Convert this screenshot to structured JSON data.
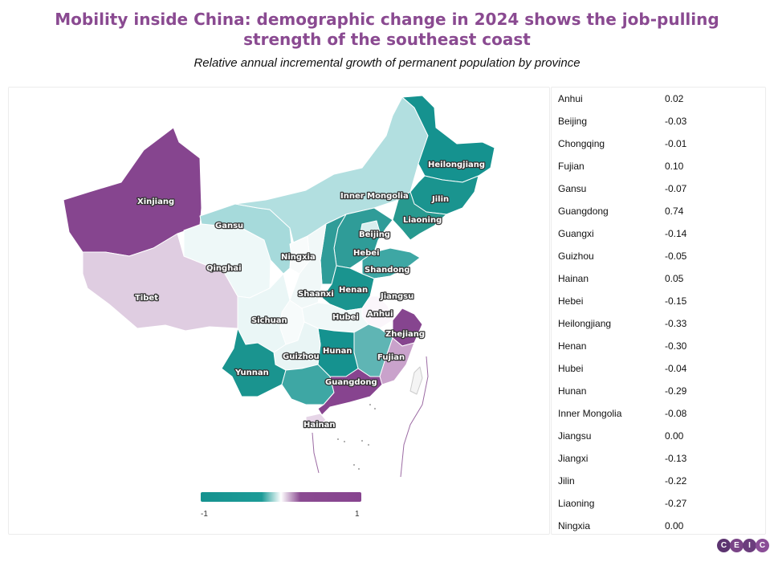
{
  "title": "Mobility inside China: demographic change in 2024 shows the job-pulling strength of the southeast coast",
  "subtitle": "Relative annual incremental growth of permanent population by province",
  "legend": {
    "min_label": "-1",
    "max_label": "1",
    "low_color": "#15928f",
    "mid_color": "#ffffff",
    "high_color": "#87448f"
  },
  "map_labels": {
    "xinjiang": "Xinjiang",
    "tibet": "Tibet",
    "qinghai": "Qinghai",
    "gansu": "Gansu",
    "inner_mongolia": "Inner Mongolia",
    "heilongjiang": "Heilongjiang",
    "jilin": "Jilin",
    "liaoning": "Liaoning",
    "beijing": "Beijing",
    "hebei": "Hebei",
    "shandong": "Shandong",
    "ningxia": "Ningxia",
    "shaanxi": "Shaanxi",
    "henan": "Henan",
    "jiangsu": "Jiangsu",
    "anhui": "Anhui",
    "hubei": "Hubei",
    "sichuan": "Sichuan",
    "zhejiang": "Zhejiang",
    "guizhou": "Guizhou",
    "hunan": "Hunan",
    "fujian": "Fujian",
    "yunnan": "Yunnan",
    "guangdong": "Guangdong",
    "hainan": "Hainan"
  },
  "table": {
    "rows": [
      {
        "province": "Anhui",
        "value": "0.02"
      },
      {
        "province": "Beijing",
        "value": "-0.03"
      },
      {
        "province": "Chongqing",
        "value": "-0.01"
      },
      {
        "province": "Fujian",
        "value": "0.10"
      },
      {
        "province": "Gansu",
        "value": "-0.07"
      },
      {
        "province": "Guangdong",
        "value": "0.74"
      },
      {
        "province": "Guangxi",
        "value": "-0.14"
      },
      {
        "province": "Guizhou",
        "value": "-0.05"
      },
      {
        "province": "Hainan",
        "value": "0.05"
      },
      {
        "province": "Hebei",
        "value": "-0.15"
      },
      {
        "province": "Heilongjiang",
        "value": "-0.33"
      },
      {
        "province": "Henan",
        "value": "-0.30"
      },
      {
        "province": "Hubei",
        "value": "-0.04"
      },
      {
        "province": "Hunan",
        "value": "-0.29"
      },
      {
        "province": "Inner Mongolia",
        "value": "-0.08"
      },
      {
        "province": "Jiangsu",
        "value": "0.00"
      },
      {
        "province": "Jiangxi",
        "value": "-0.13"
      },
      {
        "province": "Jilin",
        "value": "-0.22"
      },
      {
        "province": "Liaoning",
        "value": "-0.27"
      },
      {
        "province": "Ningxia",
        "value": "0.00"
      }
    ]
  },
  "logo": {
    "letters": [
      "C",
      "E",
      "I",
      "C"
    ]
  }
}
